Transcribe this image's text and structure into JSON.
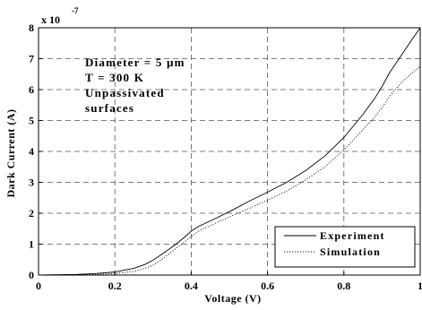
{
  "chart_data": {
    "type": "line",
    "xlabel": "Voltage (V)",
    "ylabel": "Dark Current (A)",
    "y_exponent_label": "x 10",
    "y_exponent_power": "-7",
    "xlim": [
      0,
      1
    ],
    "ylim": [
      0,
      8
    ],
    "x_ticks": [
      "0",
      "0.2",
      "0.4",
      "0.6",
      "0.8",
      "1"
    ],
    "y_ticks": [
      "0",
      "1",
      "2",
      "3",
      "4",
      "5",
      "6",
      "7",
      "8"
    ],
    "grid": true,
    "legend_position": "bottom-right",
    "annotation": [
      "Diameter = 5 µm",
      "T = 300 K",
      "Unpassivated",
      "surfaces"
    ],
    "series": [
      {
        "name": "Experiment",
        "style": "solid",
        "x": [
          0.0,
          0.1,
          0.15,
          0.2,
          0.25,
          0.28,
          0.3,
          0.32,
          0.34,
          0.36,
          0.38,
          0.4,
          0.42,
          0.45,
          0.5,
          0.55,
          0.6,
          0.65,
          0.7,
          0.75,
          0.8,
          0.85,
          0.88,
          0.9,
          0.92,
          0.95,
          0.98,
          1.0
        ],
        "y": [
          0.0,
          0.02,
          0.05,
          0.1,
          0.22,
          0.35,
          0.48,
          0.65,
          0.82,
          1.0,
          1.2,
          1.42,
          1.58,
          1.75,
          2.05,
          2.38,
          2.68,
          3.0,
          3.38,
          3.85,
          4.45,
          5.2,
          5.7,
          6.1,
          6.55,
          7.1,
          7.65,
          8.0
        ]
      },
      {
        "name": "Simulation",
        "style": "dotted",
        "x": [
          0.0,
          0.1,
          0.15,
          0.2,
          0.25,
          0.28,
          0.3,
          0.32,
          0.34,
          0.36,
          0.38,
          0.4,
          0.42,
          0.45,
          0.5,
          0.55,
          0.6,
          0.65,
          0.7,
          0.75,
          0.8,
          0.85,
          0.88,
          0.9,
          0.92,
          0.95,
          0.98,
          1.0
        ],
        "y": [
          0.0,
          0.01,
          0.02,
          0.05,
          0.12,
          0.22,
          0.32,
          0.48,
          0.66,
          0.86,
          1.05,
          1.25,
          1.42,
          1.6,
          1.88,
          2.15,
          2.42,
          2.72,
          3.08,
          3.5,
          4.05,
          4.7,
          5.1,
          5.42,
          5.78,
          6.22,
          6.55,
          6.75
        ]
      }
    ]
  }
}
